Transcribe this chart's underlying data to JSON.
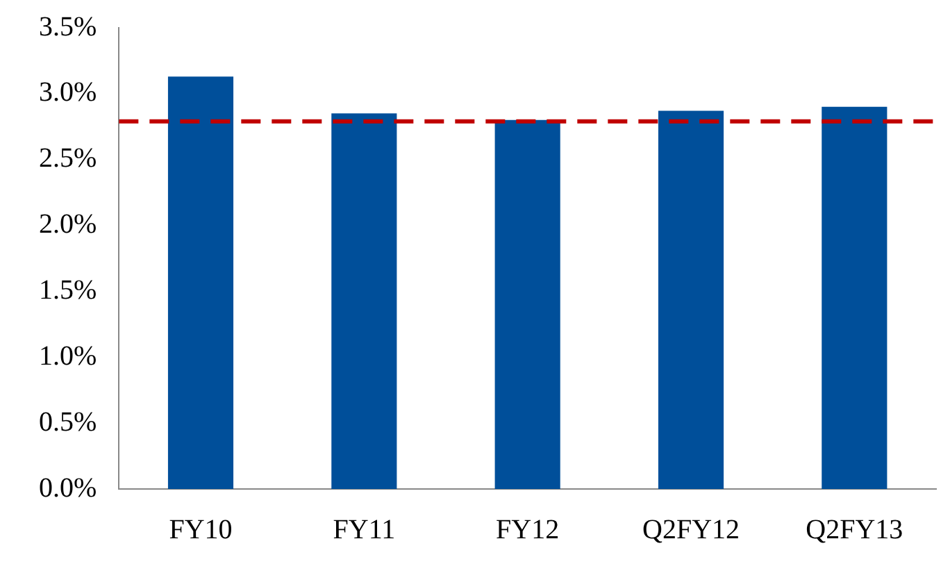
{
  "chart_data": {
    "type": "bar",
    "categories": [
      "FY10",
      "FY11",
      "FY12",
      "Q2FY12",
      "Q2FY13"
    ],
    "values": [
      3.13,
      2.85,
      2.8,
      2.87,
      2.9
    ],
    "color": "#004f9a",
    "ylim": [
      0,
      3.5
    ],
    "yticks": [
      {
        "value": 0,
        "label": "0.0%"
      },
      {
        "value": 0.5,
        "label": "0.5%"
      },
      {
        "value": 1,
        "label": "1.0%"
      },
      {
        "value": 1.5,
        "label": "1.5%"
      },
      {
        "value": 2,
        "label": "2.0%"
      },
      {
        "value": 2.5,
        "label": "2.5%"
      },
      {
        "value": 3,
        "label": "3.0%"
      },
      {
        "value": 3.5,
        "label": "3.5%"
      }
    ],
    "grid": false,
    "legend": false,
    "ref_lines": [
      {
        "axis": "y",
        "value": 2.79,
        "color": "#c00000",
        "line_style": "dashed"
      }
    ]
  }
}
